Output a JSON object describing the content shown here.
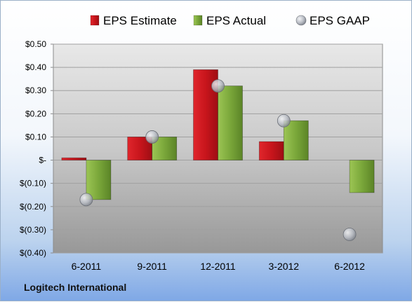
{
  "footer": {
    "company": "Logitech International"
  },
  "colors": {
    "estimate": "#c8151c",
    "actual": "#7aa73a",
    "gaap": "#b8bcc4",
    "plot_top": "#e6e6e6",
    "plot_bottom": "#9a9a9a"
  },
  "chart_data": {
    "type": "bar",
    "categories": [
      "6-2011",
      "9-2011",
      "12-2011",
      "3-2012",
      "6-2012"
    ],
    "series": [
      {
        "name": "EPS Estimate",
        "kind": "bar",
        "color": "#c8151c",
        "values": [
          0.01,
          0.1,
          0.39,
          0.08,
          null
        ]
      },
      {
        "name": "EPS Actual",
        "kind": "bar",
        "color": "#7aa73a",
        "values": [
          -0.17,
          0.1,
          0.32,
          0.17,
          -0.14
        ]
      },
      {
        "name": "EPS GAAP",
        "kind": "marker",
        "color": "#b8bcc4",
        "values": [
          -0.17,
          0.1,
          0.32,
          0.17,
          -0.32
        ]
      }
    ],
    "ylim": [
      -0.4,
      0.5
    ],
    "yticks": [
      0.5,
      0.4,
      0.3,
      0.2,
      0.1,
      0,
      -0.1,
      -0.2,
      -0.3,
      -0.4
    ],
    "ytick_labels": [
      "$0.50",
      "$0.40",
      "$0.30",
      "$0.20",
      "$0.10",
      "$-",
      "$(0.10)",
      "$(0.20)",
      "$(0.30)",
      "$(0.40)"
    ],
    "grid": true,
    "legend_position": "top"
  }
}
